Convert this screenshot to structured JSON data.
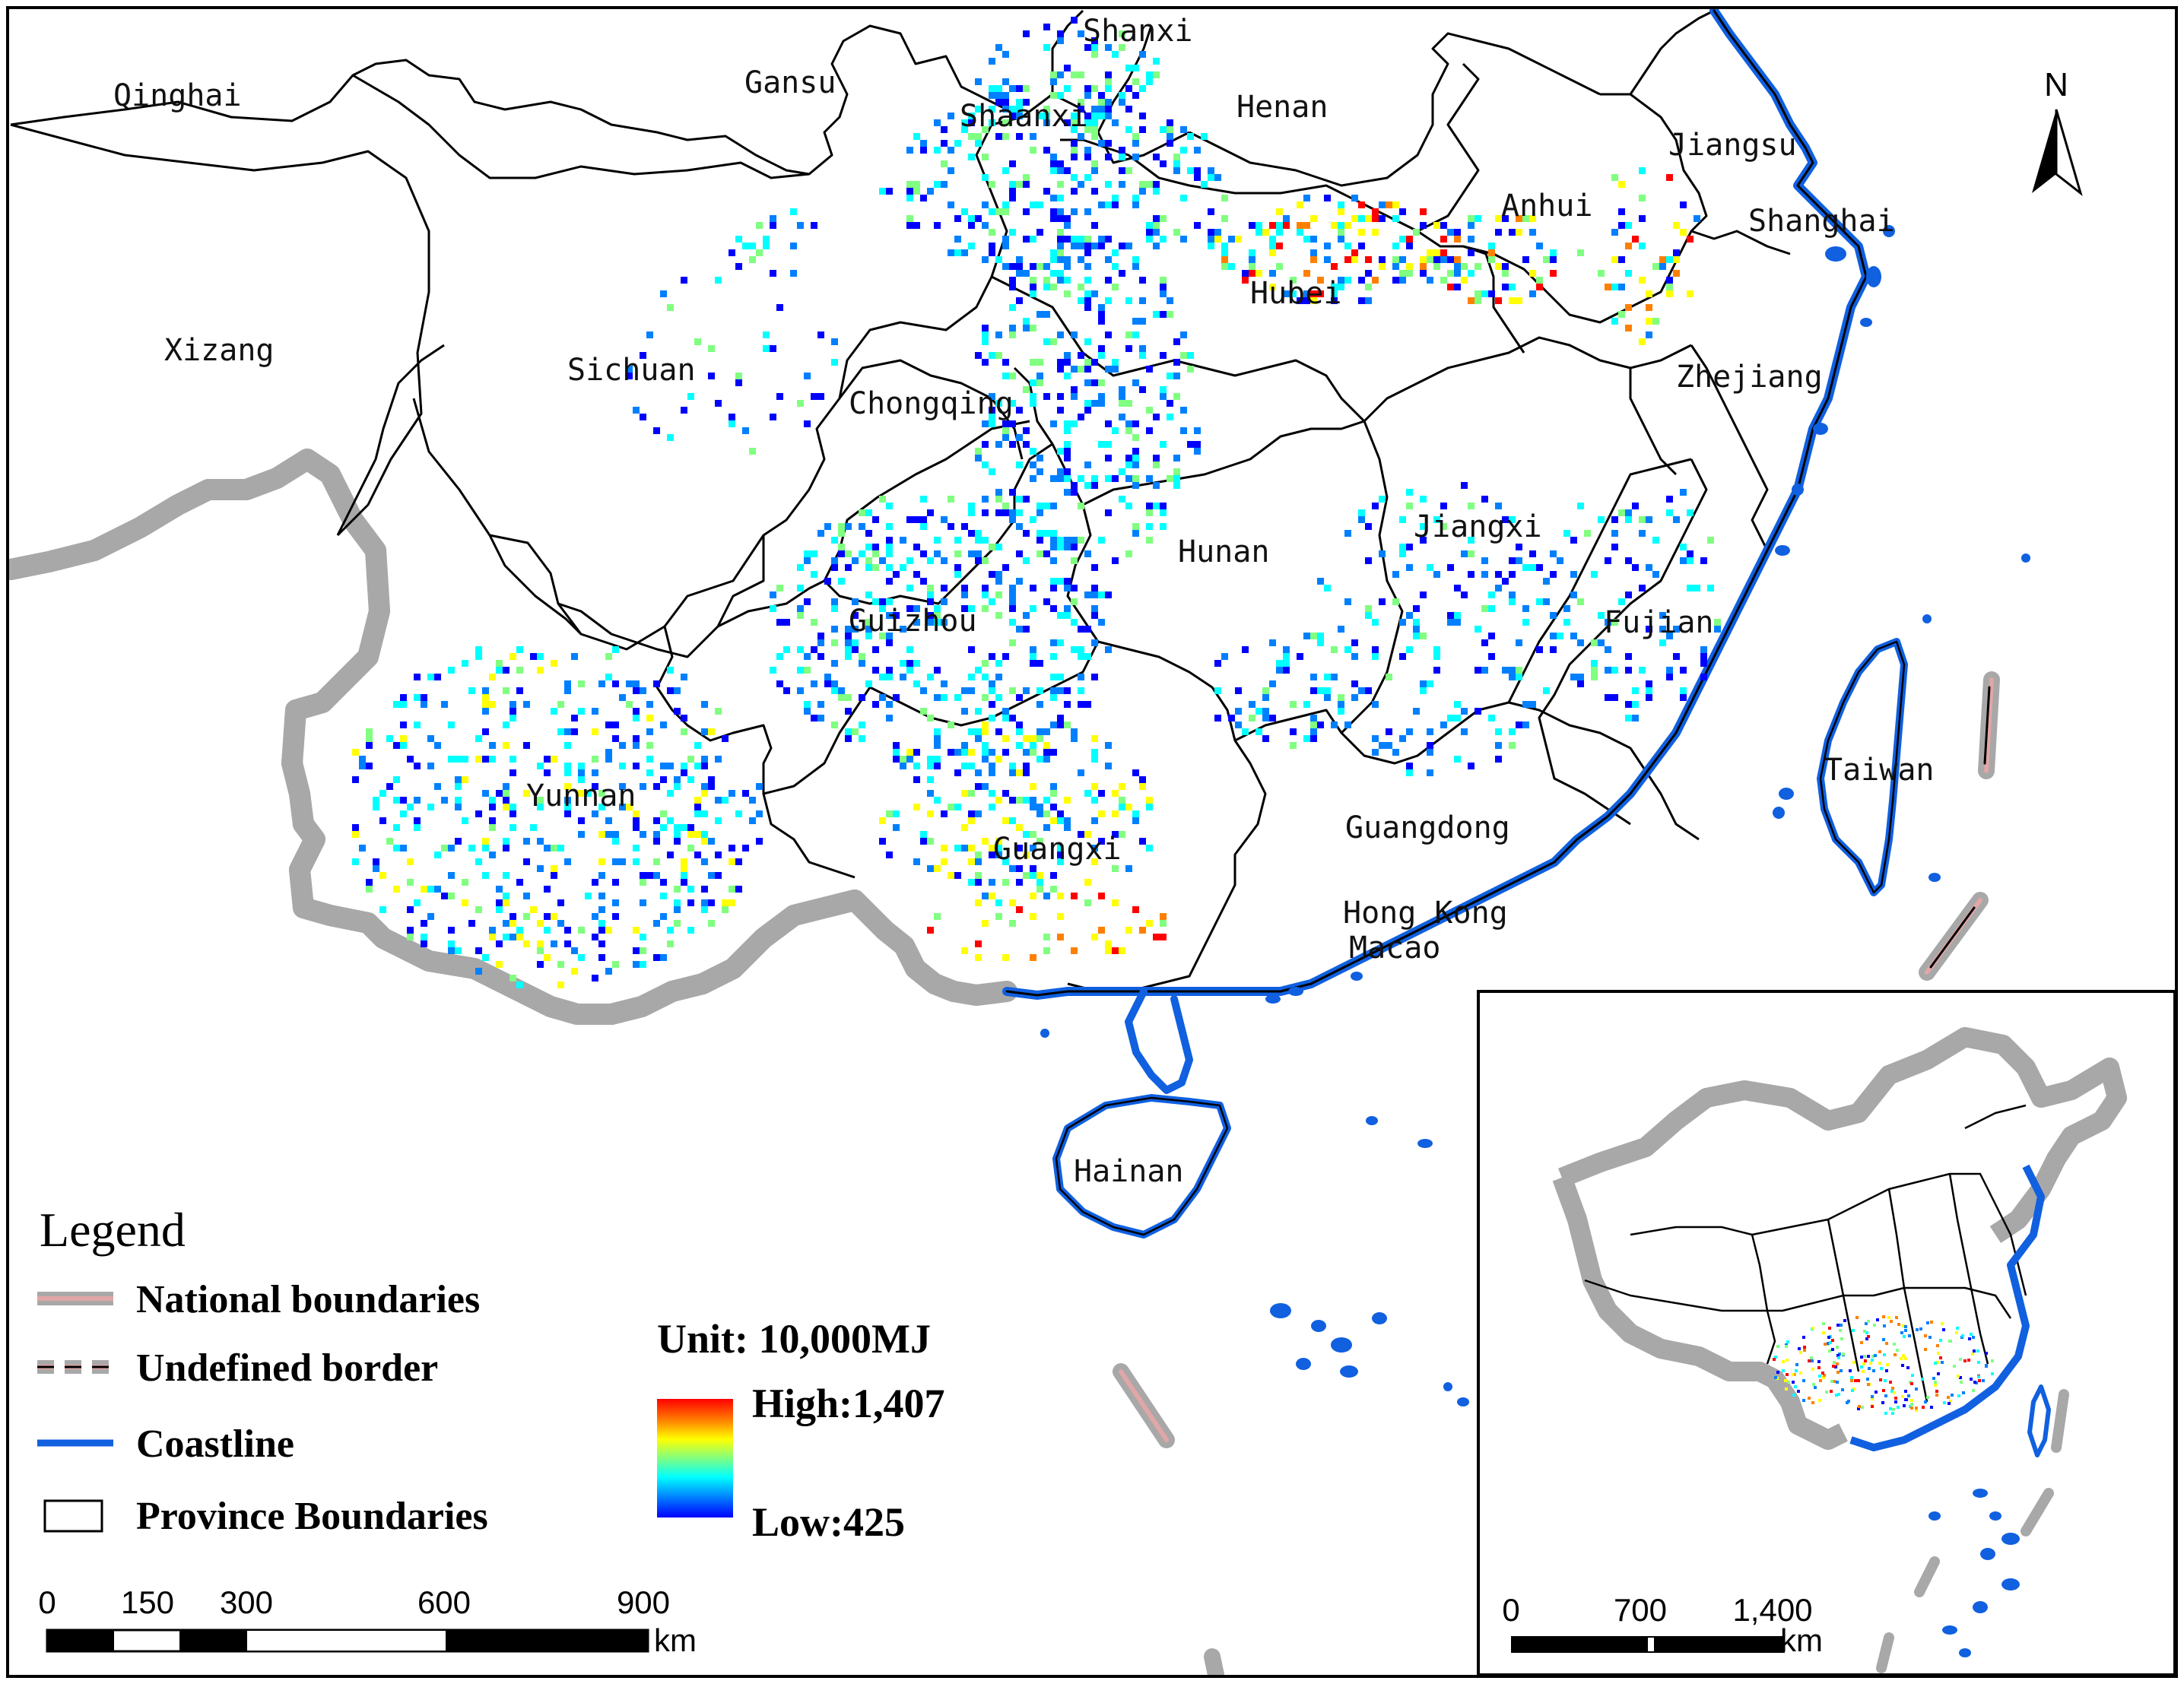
{
  "map": {
    "provinces": [
      {
        "name": "Qinghai"
      },
      {
        "name": "Gansu"
      },
      {
        "name": "Shanxi"
      },
      {
        "name": "Shaanxi"
      },
      {
        "name": "Henan"
      },
      {
        "name": "Jiangsu"
      },
      {
        "name": "Anhui"
      },
      {
        "name": "Shanghai"
      },
      {
        "name": "Xizang"
      },
      {
        "name": "Sichuan"
      },
      {
        "name": "Hubei"
      },
      {
        "name": "Chongqing"
      },
      {
        "name": "Zhejiang"
      },
      {
        "name": "Hunan"
      },
      {
        "name": "Jiangxi"
      },
      {
        "name": "Guizhou"
      },
      {
        "name": "Fujian"
      },
      {
        "name": "Yunnan"
      },
      {
        "name": "Guangxi"
      },
      {
        "name": "Guangdong"
      },
      {
        "name": "Taiwan"
      },
      {
        "name": "Hong Kong"
      },
      {
        "name": "Macao"
      },
      {
        "name": "Hainan"
      }
    ],
    "north_arrow_label": "N"
  },
  "legend": {
    "title": "Legend",
    "items": [
      {
        "label": "National boundaries",
        "symbol": "national-boundary"
      },
      {
        "label": "Undefined border",
        "symbol": "undefined-border"
      },
      {
        "label": "Coastline",
        "symbol": "coastline"
      },
      {
        "label": "Province Boundaries",
        "symbol": "province-boundary"
      }
    ]
  },
  "color_scale": {
    "unit_label": "Unit: 10,000MJ",
    "high_label": "High:1,407",
    "low_label": "Low:425",
    "high_value": 1407,
    "low_value": 425,
    "colors": [
      "#ff0000",
      "#ff8000",
      "#ffff00",
      "#80ff80",
      "#00ffff",
      "#0080ff",
      "#0000ff"
    ]
  },
  "main_scalebar": {
    "ticks": [
      "0",
      "150",
      "300",
      "600",
      "900"
    ],
    "unit": "km"
  },
  "inset_scalebar": {
    "ticks": [
      "0",
      "700",
      "1,400"
    ],
    "unit": "km"
  },
  "colors": {
    "coastline": "#1060e0",
    "national_boundary_halo": "#a0a0a0",
    "national_boundary_core": "#e8a0a0",
    "province_boundary": "#000000"
  }
}
